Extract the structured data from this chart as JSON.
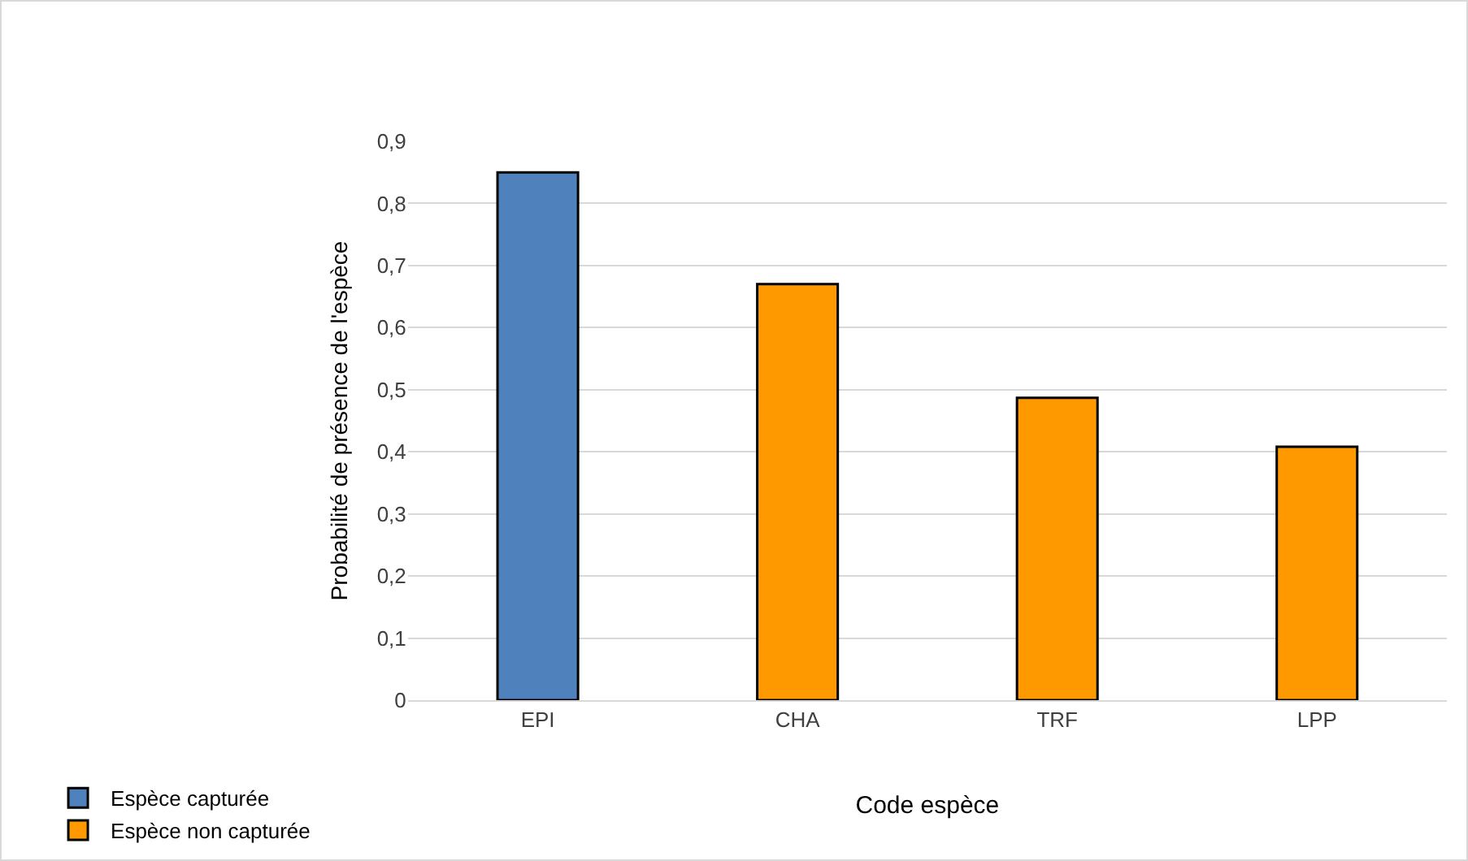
{
  "chart_data": {
    "type": "bar",
    "xlabel": "Code espèce",
    "ylabel": "Probabilité de présence de l'espèce",
    "categories": [
      "EPI",
      "CHA",
      "TRF",
      "LPP"
    ],
    "series": [
      {
        "name": "Espèce capturée",
        "color": "#4f81bd",
        "values": [
          0.85,
          null,
          null,
          null
        ]
      },
      {
        "name": "Espèce non capturée",
        "color": "#ff9900",
        "values": [
          null,
          0.67,
          0.487,
          0.408
        ]
      }
    ],
    "ylim": [
      0,
      0.9
    ],
    "yticks": [
      {
        "value": 0,
        "label": "0"
      },
      {
        "value": 0.1,
        "label": "0,1"
      },
      {
        "value": 0.2,
        "label": "0,2"
      },
      {
        "value": 0.3,
        "label": "0,3"
      },
      {
        "value": 0.4,
        "label": "0,4"
      },
      {
        "value": 0.5,
        "label": "0,5"
      },
      {
        "value": 0.6,
        "label": "0,6"
      },
      {
        "value": 0.7,
        "label": "0,7"
      },
      {
        "value": 0.8,
        "label": "0,8"
      },
      {
        "value": 0.9,
        "label": "0,9"
      }
    ],
    "grid": "y",
    "legend": "bottom left"
  }
}
